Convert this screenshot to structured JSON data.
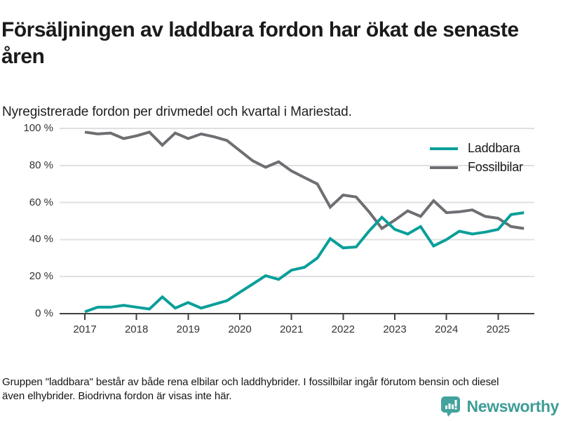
{
  "header": {
    "title": "Försäljningen av laddbara fordon har ökat de senaste åren",
    "subtitle": "Nyregistrerade fordon per drivmedel och kvartal i Mariestad."
  },
  "footer": {
    "note": "Gruppen \"laddbara\" består av både rena elbilar och laddhybrider. I fossilbilar ingår förutom bensin och diesel även elhybrider. Biodrivna fordon är visas inte här.",
    "brand": "Newsworthy"
  },
  "colors": {
    "laddbara": "#0a9f9a",
    "fossilbilar": "#6e6e73",
    "grid": "#e0e0e0",
    "axis": "#3f3f3f",
    "tick_text": "#333333",
    "logo_teal": "#42a39c"
  },
  "icons": {
    "logo": "speech-bubble-bar-chart-icon"
  },
  "chart_data": {
    "type": "line",
    "title": "Försäljningen av laddbara fordon har ökat de senaste åren",
    "subtitle": "Nyregistrerade fordon per drivmedel och kvartal i Mariestad.",
    "x_unit": "quarter",
    "categories": [
      "2017Q1",
      "2017Q2",
      "2017Q3",
      "2017Q4",
      "2018Q1",
      "2018Q2",
      "2018Q3",
      "2018Q4",
      "2019Q1",
      "2019Q2",
      "2019Q3",
      "2019Q4",
      "2020Q1",
      "2020Q2",
      "2020Q3",
      "2020Q4",
      "2021Q1",
      "2021Q2",
      "2021Q3",
      "2021Q4",
      "2022Q1",
      "2022Q2",
      "2022Q3",
      "2022Q4",
      "2023Q1",
      "2023Q2",
      "2023Q3",
      "2023Q4",
      "2024Q1",
      "2024Q2",
      "2024Q3",
      "2024Q4",
      "2025Q1",
      "2025Q2",
      "2025Q3"
    ],
    "series": [
      {
        "name": "Laddbara",
        "color": "#0a9f9a",
        "values": [
          1,
          3.5,
          3.5,
          4.5,
          3.5,
          2.5,
          9,
          3,
          6,
          3,
          5,
          7,
          11.5,
          16,
          20.5,
          18.5,
          23.5,
          25,
          30,
          40.5,
          35.5,
          36,
          44.5,
          52,
          45.5,
          43,
          47,
          36.5,
          40,
          44.5,
          43,
          44,
          45.5,
          53.5,
          54.5
        ]
      },
      {
        "name": "Fossilbilar",
        "color": "#6e6e73",
        "values": [
          98,
          97,
          97.5,
          94.5,
          96,
          98,
          91,
          97.5,
          94.5,
          97,
          95.5,
          93.5,
          88,
          82.5,
          79,
          82,
          77,
          73.5,
          70,
          57.5,
          64,
          63,
          55,
          46,
          50.5,
          55.5,
          52.5,
          61,
          54.5,
          55,
          56,
          52.5,
          51.5,
          47,
          46
        ]
      }
    ],
    "x_tick_labels": [
      "2017",
      "2018",
      "2019",
      "2020",
      "2021",
      "2022",
      "2023",
      "2024",
      "2025"
    ],
    "y_tick_labels": [
      "0 %",
      "20 %",
      "40 %",
      "60 %",
      "80 %",
      "100 %"
    ],
    "y_tick_values": [
      0,
      20,
      40,
      60,
      80,
      100
    ],
    "ylim": [
      0,
      100
    ],
    "grid": "horizontal",
    "legend_position": "top-right"
  }
}
